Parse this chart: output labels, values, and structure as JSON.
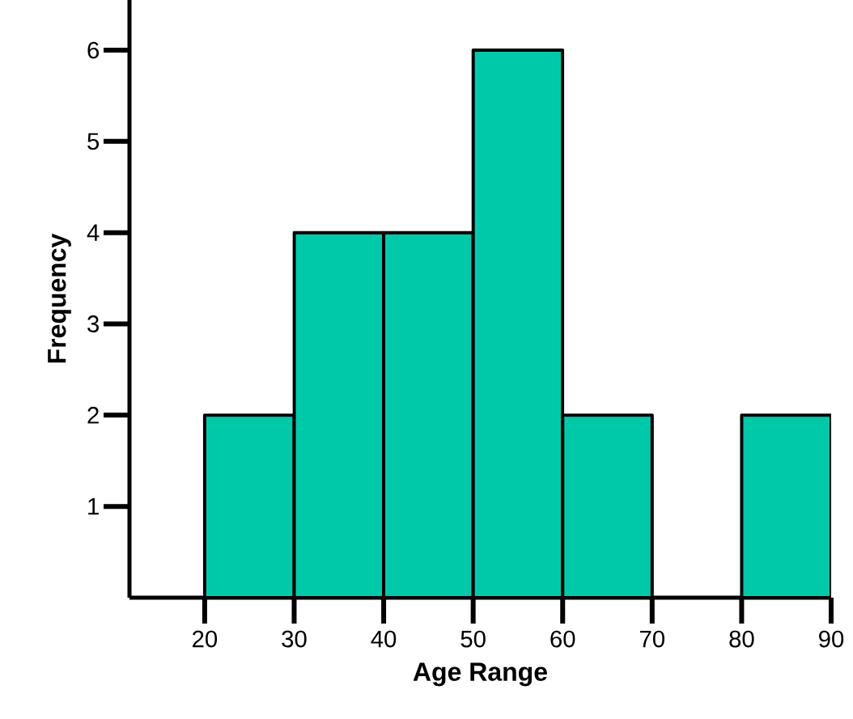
{
  "chart_data": {
    "type": "histogram",
    "xlabel": "Age Range",
    "ylabel": "Frequency",
    "bins": [
      20,
      30,
      40,
      50,
      60,
      70,
      80,
      90
    ],
    "values": [
      2,
      4,
      4,
      6,
      2,
      0,
      2
    ],
    "color": "#00c9aa",
    "xlim": [
      11.6,
      90
    ],
    "ylim": [
      0,
      6.55
    ],
    "xticks": [
      20,
      30,
      40,
      50,
      60,
      70,
      80,
      90
    ],
    "yticks": [
      1,
      2,
      3,
      4,
      5,
      6
    ]
  }
}
